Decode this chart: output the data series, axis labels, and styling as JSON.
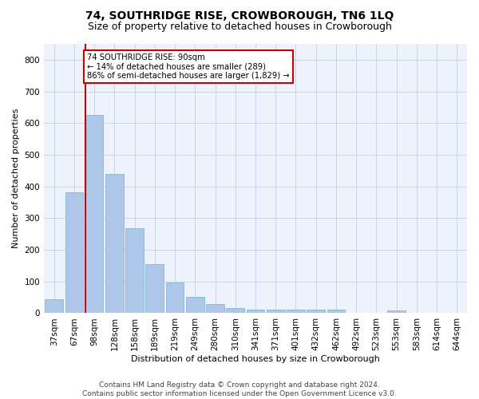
{
  "title": "74, SOUTHRIDGE RISE, CROWBOROUGH, TN6 1LQ",
  "subtitle": "Size of property relative to detached houses in Crowborough",
  "xlabel": "Distribution of detached houses by size in Crowborough",
  "ylabel": "Number of detached properties",
  "categories": [
    "37sqm",
    "67sqm",
    "98sqm",
    "128sqm",
    "158sqm",
    "189sqm",
    "219sqm",
    "249sqm",
    "280sqm",
    "310sqm",
    "341sqm",
    "371sqm",
    "401sqm",
    "432sqm",
    "462sqm",
    "492sqm",
    "523sqm",
    "553sqm",
    "583sqm",
    "614sqm",
    "644sqm"
  ],
  "values": [
    45,
    382,
    625,
    440,
    268,
    155,
    97,
    52,
    28,
    17,
    12,
    11,
    11,
    11,
    10,
    0,
    0,
    8,
    0,
    0,
    0
  ],
  "bar_color": "#aec6e8",
  "bar_edge_color": "#7aafd4",
  "property_line_color": "#cc0000",
  "annotation_text": "74 SOUTHRIDGE RISE: 90sqm\n← 14% of detached houses are smaller (289)\n86% of semi-detached houses are larger (1,829) →",
  "annotation_box_color": "#ffffff",
  "annotation_box_edge": "#cc0000",
  "footer_text": "Contains HM Land Registry data © Crown copyright and database right 2024.\nContains public sector information licensed under the Open Government Licence v3.0.",
  "ylim": [
    0,
    850
  ],
  "yticks": [
    0,
    100,
    200,
    300,
    400,
    500,
    600,
    700,
    800
  ],
  "grid_color": "#c8d4e8",
  "bg_color": "#eef2fa",
  "title_fontsize": 10,
  "subtitle_fontsize": 9,
  "axis_fontsize": 8,
  "tick_fontsize": 7.5,
  "footer_fontsize": 6.5
}
